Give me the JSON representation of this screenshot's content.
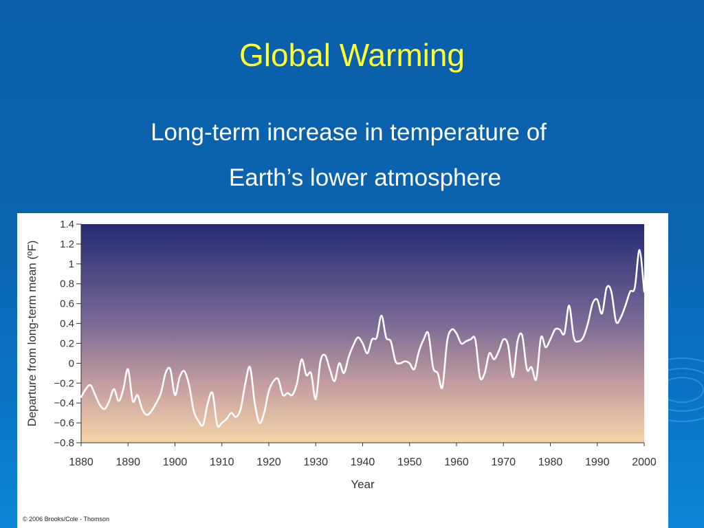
{
  "slide": {
    "title": "Global Warming",
    "subtitle_line1": "Long-term increase in temperature of",
    "subtitle_line2": "Earth’s lower atmosphere",
    "credit": "© 2006 Brooks/Cole - Thomson"
  },
  "colors": {
    "title": "#ffff33",
    "plot_top": "#242a72",
    "plot_bottom": "#f5d4a8",
    "line": "#ffffff"
  },
  "chart_data": {
    "type": "line",
    "title": "",
    "xlabel": "Year",
    "ylabel": "Departure from long-term mean (ºF)",
    "xlim": [
      1880,
      2000
    ],
    "ylim": [
      -0.8,
      1.4
    ],
    "x_ticks": [
      1880,
      1890,
      1900,
      1910,
      1920,
      1930,
      1940,
      1950,
      1960,
      1970,
      1980,
      1990,
      2000
    ],
    "y_ticks": [
      1.4,
      1.2,
      1,
      0.8,
      0.6,
      0.4,
      0.2,
      0,
      -0.2,
      -0.4,
      -0.6,
      -0.8
    ],
    "y_tick_labels": [
      "1.4",
      "1.2",
      "1",
      "0.8",
      "0.6",
      "0.4",
      "0.2",
      "0",
      "−0.2",
      "−0.4",
      "−0.6",
      "−0.8"
    ],
    "grid": false,
    "series": [
      {
        "x": [
          1880,
          1881,
          1882,
          1883,
          1884,
          1885,
          1886,
          1887,
          1888,
          1889,
          1890,
          1891,
          1892,
          1893,
          1894,
          1895,
          1896,
          1897,
          1898,
          1899,
          1900,
          1901,
          1902,
          1903,
          1904,
          1905,
          1906,
          1907,
          1908,
          1909,
          1910,
          1911,
          1912,
          1913,
          1914,
          1915,
          1916,
          1917,
          1918,
          1919,
          1920,
          1921,
          1922,
          1923,
          1924,
          1925,
          1926,
          1927,
          1928,
          1929,
          1930,
          1931,
          1932,
          1933,
          1934,
          1935,
          1936,
          1937,
          1938,
          1939,
          1940,
          1941,
          1942,
          1943,
          1944,
          1945,
          1946,
          1947,
          1948,
          1949,
          1950,
          1951,
          1952,
          1953,
          1954,
          1955,
          1956,
          1957,
          1958,
          1959,
          1960,
          1961,
          1962,
          1963,
          1964,
          1965,
          1966,
          1967,
          1968,
          1969,
          1970,
          1971,
          1972,
          1973,
          1974,
          1975,
          1976,
          1977,
          1978,
          1979,
          1980,
          1981,
          1982,
          1983,
          1984,
          1985,
          1986,
          1987,
          1988,
          1989,
          1990,
          1991,
          1992,
          1993,
          1994,
          1995,
          1996,
          1997,
          1998,
          1999,
          2000
        ],
        "y": [
          -0.34,
          -0.26,
          -0.22,
          -0.32,
          -0.42,
          -0.46,
          -0.38,
          -0.26,
          -0.38,
          -0.26,
          -0.06,
          -0.38,
          -0.32,
          -0.46,
          -0.52,
          -0.48,
          -0.4,
          -0.3,
          -0.1,
          -0.06,
          -0.32,
          -0.14,
          -0.08,
          -0.22,
          -0.48,
          -0.58,
          -0.62,
          -0.4,
          -0.3,
          -0.62,
          -0.6,
          -0.56,
          -0.5,
          -0.54,
          -0.46,
          -0.2,
          -0.04,
          -0.4,
          -0.6,
          -0.5,
          -0.28,
          -0.18,
          -0.16,
          -0.32,
          -0.3,
          -0.32,
          -0.2,
          0.04,
          -0.12,
          -0.1,
          -0.36,
          0.02,
          0.08,
          -0.06,
          -0.18,
          0.0,
          -0.1,
          0.06,
          0.18,
          0.26,
          0.2,
          0.1,
          0.24,
          0.26,
          0.48,
          0.26,
          0.22,
          0.02,
          0.0,
          0.02,
          0.0,
          -0.06,
          0.12,
          0.24,
          0.3,
          -0.04,
          -0.1,
          -0.24,
          0.22,
          0.34,
          0.3,
          0.2,
          0.22,
          0.24,
          0.24,
          -0.14,
          -0.1,
          0.1,
          0.04,
          0.12,
          0.24,
          0.18,
          -0.14,
          0.22,
          0.28,
          -0.06,
          -0.04,
          -0.16,
          0.26,
          0.16,
          0.24,
          0.34,
          0.34,
          0.3,
          0.58,
          0.26,
          0.22,
          0.26,
          0.4,
          0.6,
          0.64,
          0.5,
          0.76,
          0.72,
          0.42,
          0.46,
          0.58,
          0.72,
          0.76,
          1.14,
          0.72
        ]
      }
    ]
  }
}
